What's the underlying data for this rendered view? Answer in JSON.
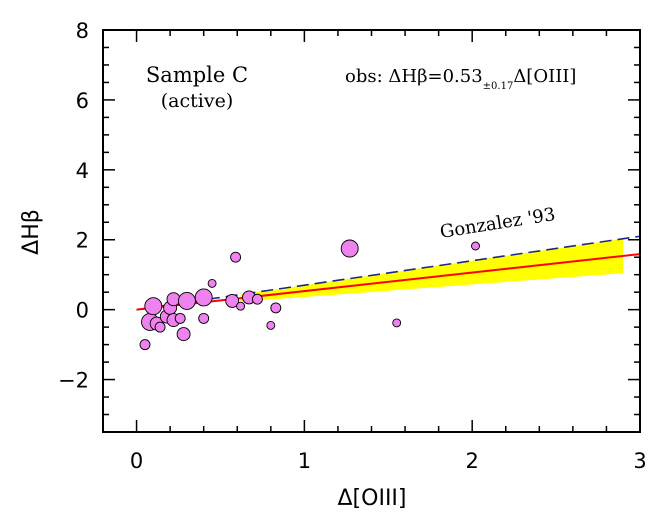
{
  "chart_data": {
    "type": "scatter",
    "xlabel": "Δ[OIII]",
    "ylabel": "ΔHβ",
    "xlim": [
      -0.2,
      3.0
    ],
    "ylim": [
      -3.5,
      8.0
    ],
    "xticks": [
      "0",
      "1",
      "2",
      "3"
    ],
    "xtick_values": [
      0,
      1,
      2,
      3
    ],
    "yticks": [
      "−2",
      "0",
      "2",
      "4",
      "6",
      "8"
    ],
    "ytick_values": [
      -2,
      0,
      2,
      4,
      6,
      8
    ],
    "panel_label_line1": "Sample C",
    "panel_label_line2": "(active)",
    "fit_annotation_prefix": "obs:  ΔHβ=0.53",
    "fit_annotation_error": "±0.17",
    "fit_annotation_suffix": "Δ[OIII]",
    "reference_label": "Gonzalez '93",
    "fit_line": {
      "slope": 0.53,
      "intercept": 0.0,
      "x_range": [
        0,
        3.0
      ],
      "color": "#ff0000"
    },
    "fit_band": {
      "x_start": 0.62,
      "x_end": 2.9,
      "slope_low": 0.36,
      "slope_high": 0.7,
      "color": "#ffff00"
    },
    "reference_line": {
      "slope": 0.7,
      "intercept": 0.0,
      "x_range": [
        0,
        3.0
      ],
      "color": "#1a2a8c",
      "style": "dashed"
    },
    "points": [
      {
        "x": 0.05,
        "y": -1.0,
        "size": "small"
      },
      {
        "x": 0.08,
        "y": -0.35,
        "size": "large"
      },
      {
        "x": 0.1,
        "y": 0.1,
        "size": "large"
      },
      {
        "x": 0.12,
        "y": -0.4,
        "size": "medium"
      },
      {
        "x": 0.14,
        "y": -0.5,
        "size": "small"
      },
      {
        "x": 0.18,
        "y": -0.2,
        "size": "medium"
      },
      {
        "x": 0.2,
        "y": 0.05,
        "size": "medium"
      },
      {
        "x": 0.22,
        "y": -0.3,
        "size": "medium"
      },
      {
        "x": 0.22,
        "y": 0.3,
        "size": "medium"
      },
      {
        "x": 0.26,
        "y": -0.25,
        "size": "small"
      },
      {
        "x": 0.28,
        "y": -0.7,
        "size": "medium"
      },
      {
        "x": 0.3,
        "y": 0.25,
        "size": "large"
      },
      {
        "x": 0.4,
        "y": 0.35,
        "size": "large"
      },
      {
        "x": 0.4,
        "y": -0.25,
        "size": "small"
      },
      {
        "x": 0.45,
        "y": 0.75,
        "size": "tiny"
      },
      {
        "x": 0.57,
        "y": 0.25,
        "size": "medium"
      },
      {
        "x": 0.59,
        "y": 1.5,
        "size": "small"
      },
      {
        "x": 0.62,
        "y": 0.1,
        "size": "tiny"
      },
      {
        "x": 0.67,
        "y": 0.35,
        "size": "medium"
      },
      {
        "x": 0.72,
        "y": 0.3,
        "size": "small"
      },
      {
        "x": 0.8,
        "y": -0.45,
        "size": "tiny"
      },
      {
        "x": 0.83,
        "y": 0.05,
        "size": "small"
      },
      {
        "x": 1.27,
        "y": 1.75,
        "size": "large"
      },
      {
        "x": 1.55,
        "y": -0.38,
        "size": "tiny"
      },
      {
        "x": 2.02,
        "y": 1.82,
        "size": "tiny"
      }
    ],
    "point_color": "#ee82ee",
    "grid": false
  }
}
